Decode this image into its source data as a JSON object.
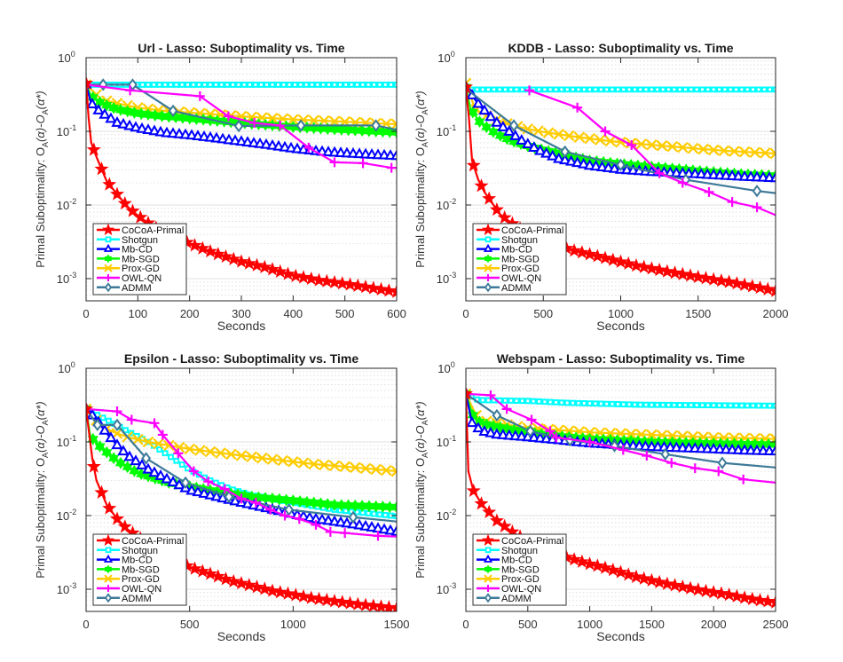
{
  "chart_data": [
    {
      "type": "line",
      "title": "Url - Lasso: Suboptimality vs. Time",
      "xlabel": "Seconds",
      "ylabel": "Primal Suboptimality: O_A(α)-O_A(α*)",
      "xscale": "linear",
      "yscale": "log",
      "xlim": [
        0,
        600
      ],
      "ylim": [
        0.0005,
        1
      ],
      "xticks": [
        0,
        100,
        200,
        300,
        400,
        500,
        600
      ],
      "yticks": [
        "10^0",
        "10^-1",
        "10^-2",
        "10^-3"
      ],
      "grid": true,
      "legend_position": "bottom-left",
      "series": [
        {
          "name": "CoCoA-Primal",
          "x": [
            0,
            5,
            10,
            20,
            40,
            60,
            80,
            100,
            120,
            150,
            200,
            250,
            300,
            350,
            400,
            450,
            500,
            550,
            600
          ],
          "y": [
            0.45,
            0.15,
            0.07,
            0.045,
            0.021,
            0.014,
            0.0095,
            0.0072,
            0.0057,
            0.0042,
            0.003,
            0.0022,
            0.0017,
            0.0014,
            0.0011,
            0.00095,
            0.00085,
            0.00075,
            0.00066
          ]
        },
        {
          "name": "Shotgun",
          "x": [
            0,
            100,
            200,
            300,
            400,
            500,
            600
          ],
          "y": [
            0.43,
            0.43,
            0.43,
            0.43,
            0.43,
            0.43,
            0.43
          ]
        },
        {
          "name": "Mb-CD",
          "x": [
            0,
            10,
            20,
            40,
            60,
            100,
            150,
            200,
            250,
            300,
            350,
            400,
            450,
            500,
            550,
            600
          ],
          "y": [
            0.43,
            0.24,
            0.2,
            0.16,
            0.13,
            0.11,
            0.095,
            0.088,
            0.08,
            0.072,
            0.065,
            0.058,
            0.053,
            0.05,
            0.048,
            0.046
          ]
        },
        {
          "name": "Mb-SGD",
          "x": [
            0,
            10,
            30,
            60,
            100,
            150,
            200,
            300,
            400,
            500,
            600
          ],
          "y": [
            0.43,
            0.3,
            0.24,
            0.2,
            0.175,
            0.16,
            0.15,
            0.13,
            0.115,
            0.105,
            0.097
          ]
        },
        {
          "name": "Prox-GD",
          "x": [
            0,
            30,
            60,
            100,
            150,
            200,
            300,
            400,
            500,
            600
          ],
          "y": [
            0.43,
            0.27,
            0.24,
            0.21,
            0.19,
            0.18,
            0.16,
            0.145,
            0.135,
            0.125
          ]
        },
        {
          "name": "OWL-QN",
          "x": [
            0,
            85,
            220,
            275,
            325,
            375,
            430,
            480,
            535,
            590,
            600
          ],
          "y": [
            0.43,
            0.36,
            0.3,
            0.16,
            0.13,
            0.12,
            0.06,
            0.038,
            0.037,
            0.032,
            0.032
          ]
        },
        {
          "name": "ADMM",
          "x": [
            0,
            33,
            90,
            168,
            295,
            415,
            560,
            600
          ],
          "y": [
            0.43,
            0.43,
            0.43,
            0.19,
            0.118,
            0.12,
            0.12,
            0.105
          ]
        }
      ]
    },
    {
      "type": "line",
      "title": "KDDB - Lasso: Suboptimality vs. Time",
      "xlabel": "Seconds",
      "ylabel": "Primal Suboptimality: O_A(α)-O_A(α*)",
      "xscale": "linear",
      "yscale": "log",
      "xlim": [
        0,
        2000
      ],
      "ylim": [
        0.0005,
        1
      ],
      "xticks": [
        0,
        500,
        1000,
        1500,
        2000
      ],
      "yticks": [
        "10^0",
        "10^-1",
        "10^-2",
        "10^-3"
      ],
      "grid": true,
      "legend_position": "bottom-left",
      "series": [
        {
          "name": "CoCoA-Primal",
          "x": [
            0,
            20,
            40,
            80,
            120,
            220,
            320,
            500,
            700,
            900,
            1100,
            1300,
            1500,
            1700,
            1900,
            2000
          ],
          "y": [
            0.4,
            0.15,
            0.04,
            0.022,
            0.015,
            0.0075,
            0.0052,
            0.0032,
            0.0024,
            0.0019,
            0.0015,
            0.00125,
            0.00105,
            0.0009,
            0.00075,
            0.00068
          ]
        },
        {
          "name": "Shotgun",
          "x": [
            0,
            500,
            1000,
            1500,
            2000
          ],
          "y": [
            0.37,
            0.37,
            0.37,
            0.37,
            0.37
          ]
        },
        {
          "name": "Mb-CD",
          "x": [
            0,
            90,
            190,
            290,
            370,
            470,
            600,
            800,
            1000,
            1200,
            1500,
            1800,
            2000
          ],
          "y": [
            0.4,
            0.22,
            0.135,
            0.095,
            0.072,
            0.055,
            0.042,
            0.034,
            0.03,
            0.028,
            0.026,
            0.024,
            0.023
          ]
        },
        {
          "name": "Mb-SGD",
          "x": [
            0,
            30,
            95,
            195,
            290,
            380,
            480,
            600,
            800,
            1000,
            1200,
            1500,
            1800,
            2000
          ],
          "y": [
            0.4,
            0.2,
            0.13,
            0.093,
            0.075,
            0.065,
            0.057,
            0.05,
            0.04,
            0.036,
            0.033,
            0.029,
            0.026,
            0.025
          ]
        },
        {
          "name": "Prox-GD",
          "x": [
            0,
            60,
            140,
            280,
            380,
            500,
            700,
            900,
            1100,
            1300,
            1500,
            1700,
            2000
          ],
          "y": [
            0.45,
            0.2,
            0.16,
            0.125,
            0.11,
            0.098,
            0.085,
            0.075,
            0.068,
            0.063,
            0.058,
            0.054,
            0.05
          ]
        },
        {
          "name": "OWL-QN",
          "x": [
            410,
            720,
            900,
            1070,
            1250,
            1400,
            1570,
            1720,
            1880,
            2000
          ],
          "y": [
            0.36,
            0.21,
            0.1,
            0.065,
            0.027,
            0.02,
            0.015,
            0.011,
            0.0093,
            0.0073
          ]
        },
        {
          "name": "ADMM",
          "x": [
            0,
            310,
            640,
            1000,
            1420,
            1880,
            2000
          ],
          "y": [
            0.38,
            0.12,
            0.053,
            0.035,
            0.022,
            0.0155,
            0.0145
          ]
        }
      ]
    },
    {
      "type": "line",
      "title": "Epsilon - Lasso: Suboptimality vs. Time",
      "xlabel": "Seconds",
      "ylabel": "Primal Suboptimality: O_A(α)-O_A(α*)",
      "xscale": "linear",
      "yscale": "log",
      "xlim": [
        0,
        1500
      ],
      "ylim": [
        0.0005,
        1
      ],
      "xticks": [
        0,
        500,
        1000,
        1500
      ],
      "yticks": [
        "10^0",
        "10^-1",
        "10^-2",
        "10^-3"
      ],
      "grid": true,
      "legend_position": "bottom-left",
      "series": [
        {
          "name": "CoCoA-Primal",
          "x": [
            0,
            30,
            50,
            100,
            150,
            200,
            250,
            350,
            500,
            700,
            900,
            1100,
            1300,
            1500
          ],
          "y": [
            0.28,
            0.06,
            0.03,
            0.014,
            0.009,
            0.0065,
            0.0052,
            0.0032,
            0.002,
            0.0013,
            0.00095,
            0.00075,
            0.00063,
            0.00055
          ]
        },
        {
          "name": "Shotgun",
          "x": [
            0,
            100,
            200,
            300,
            400,
            500,
            600,
            700,
            800,
            1000,
            1200,
            1500
          ],
          "y": [
            0.28,
            0.2,
            0.14,
            0.1,
            0.065,
            0.042,
            0.03,
            0.023,
            0.019,
            0.015,
            0.012,
            0.0098
          ]
        },
        {
          "name": "Mb-CD",
          "x": [
            0,
            50,
            100,
            150,
            200,
            300,
            400,
            500,
            700,
            900,
            1100,
            1300,
            1500
          ],
          "y": [
            0.28,
            0.2,
            0.13,
            0.09,
            0.065,
            0.042,
            0.03,
            0.022,
            0.016,
            0.012,
            0.009,
            0.0075,
            0.006
          ]
        },
        {
          "name": "Mb-SGD",
          "x": [
            0,
            20,
            70,
            150,
            250,
            400,
            600,
            800,
            1000,
            1200,
            1500
          ],
          "y": [
            0.28,
            0.12,
            0.085,
            0.055,
            0.038,
            0.028,
            0.022,
            0.018,
            0.016,
            0.014,
            0.013
          ]
        },
        {
          "name": "Prox-GD",
          "x": [
            0,
            80,
            150,
            210,
            300,
            500,
            700,
            900,
            1100,
            1300,
            1500
          ],
          "y": [
            0.28,
            0.16,
            0.13,
            0.115,
            0.1,
            0.08,
            0.068,
            0.058,
            0.05,
            0.045,
            0.04
          ]
        },
        {
          "name": "OWL-QN",
          "x": [
            0,
            150,
            220,
            330,
            370,
            445,
            520,
            590,
            670,
            750,
            820,
            890,
            960,
            1030,
            1110,
            1180,
            1250,
            1410,
            1500
          ],
          "y": [
            0.28,
            0.26,
            0.2,
            0.18,
            0.125,
            0.07,
            0.04,
            0.029,
            0.023,
            0.017,
            0.015,
            0.012,
            0.01,
            0.009,
            0.0075,
            0.006,
            0.0058,
            0.0053,
            0.0052
          ]
        },
        {
          "name": "ADMM",
          "x": [
            0,
            55,
            150,
            290,
            480,
            690,
            980,
            1290,
            1500
          ],
          "y": [
            0.28,
            0.17,
            0.17,
            0.06,
            0.028,
            0.018,
            0.012,
            0.0095,
            0.0083
          ]
        }
      ]
    },
    {
      "type": "line",
      "title": "Webspam - Lasso: Suboptimality vs. Time",
      "xlabel": "Seconds",
      "ylabel": "Primal Suboptimality: O_A(α)-O_A(α*)",
      "xscale": "linear",
      "yscale": "log",
      "xlim": [
        0,
        2500
      ],
      "ylim": [
        0.0005,
        1
      ],
      "xticks": [
        0,
        500,
        1000,
        1500,
        2000,
        2500
      ],
      "yticks": [
        "10^0",
        "10^-1",
        "10^-2",
        "10^-3"
      ],
      "grid": true,
      "legend_position": "bottom-left",
      "series": [
        {
          "name": "CoCoA-Primal",
          "x": [
            0,
            20,
            60,
            125,
            250,
            375,
            600,
            850,
            1000,
            1100,
            1250,
            1350,
            1470,
            1600,
            1720,
            1850,
            1970,
            2090,
            2220,
            2340,
            2500
          ],
          "y": [
            0.45,
            0.04,
            0.022,
            0.0145,
            0.0085,
            0.006,
            0.0035,
            0.0026,
            0.0022,
            0.002,
            0.0017,
            0.0015,
            0.00135,
            0.0012,
            0.0011,
            0.001,
            0.00092,
            0.00086,
            0.00078,
            0.00072,
            0.00066
          ]
        },
        {
          "name": "Shotgun",
          "x": [
            0,
            100,
            500,
            800,
            1400,
            2500
          ],
          "y": [
            0.45,
            0.37,
            0.36,
            0.34,
            0.32,
            0.31
          ]
        },
        {
          "name": "Mb-CD",
          "x": [
            0,
            50,
            125,
            250,
            500,
            750,
            1000,
            1250,
            1500,
            1750,
            2000,
            2250,
            2500
          ],
          "y": [
            0.45,
            0.18,
            0.14,
            0.125,
            0.115,
            0.105,
            0.095,
            0.09,
            0.085,
            0.082,
            0.079,
            0.076,
            0.074
          ]
        },
        {
          "name": "Mb-SGD",
          "x": [
            0,
            60,
            125,
            250,
            500,
            750,
            1000,
            1500,
            2000,
            2500
          ],
          "y": [
            0.45,
            0.22,
            0.18,
            0.16,
            0.135,
            0.12,
            0.11,
            0.1,
            0.095,
            0.092
          ]
        },
        {
          "name": "Prox-GD",
          "x": [
            0,
            50,
            100,
            250,
            500,
            750,
            1000,
            1500,
            2000,
            2500
          ],
          "y": [
            0.45,
            0.3,
            0.2,
            0.18,
            0.155,
            0.145,
            0.135,
            0.125,
            0.115,
            0.11
          ]
        },
        {
          "name": "OWL-QN",
          "x": [
            0,
            200,
            330,
            530,
            680,
            730,
            1000,
            1270,
            1460,
            1660,
            1850,
            2040,
            2240,
            2500
          ],
          "y": [
            0.45,
            0.43,
            0.28,
            0.2,
            0.14,
            0.115,
            0.1,
            0.078,
            0.065,
            0.052,
            0.044,
            0.04,
            0.031,
            0.028
          ]
        },
        {
          "name": "ADMM",
          "x": [
            0,
            250,
            520,
            840,
            1200,
            1610,
            2070,
            2500
          ],
          "y": [
            0.45,
            0.23,
            0.14,
            0.105,
            0.088,
            0.068,
            0.052,
            0.045
          ]
        }
      ]
    }
  ],
  "series_style": {
    "CoCoA-Primal": {
      "color": "#ff0000",
      "marker": "star",
      "label": "CoCoA-Primal"
    },
    "Shotgun": {
      "color": "#00ffff",
      "marker": "square",
      "label": "Shotgun"
    },
    "Mb-CD": {
      "color": "#0000ff",
      "marker": "triangle",
      "label": "Mb-CD"
    },
    "Mb-SGD": {
      "color": "#00ff00",
      "marker": "hexagram",
      "label": "Mb-SGD"
    },
    "Prox-GD": {
      "color": "#ffcc00",
      "marker": "x",
      "label": "Prox-GD"
    },
    "OWL-QN": {
      "color": "#ff00ff",
      "marker": "plus",
      "label": "OWL-QN"
    },
    "ADMM": {
      "color": "#3d7a99",
      "marker": "diamond",
      "label": "ADMM"
    }
  }
}
